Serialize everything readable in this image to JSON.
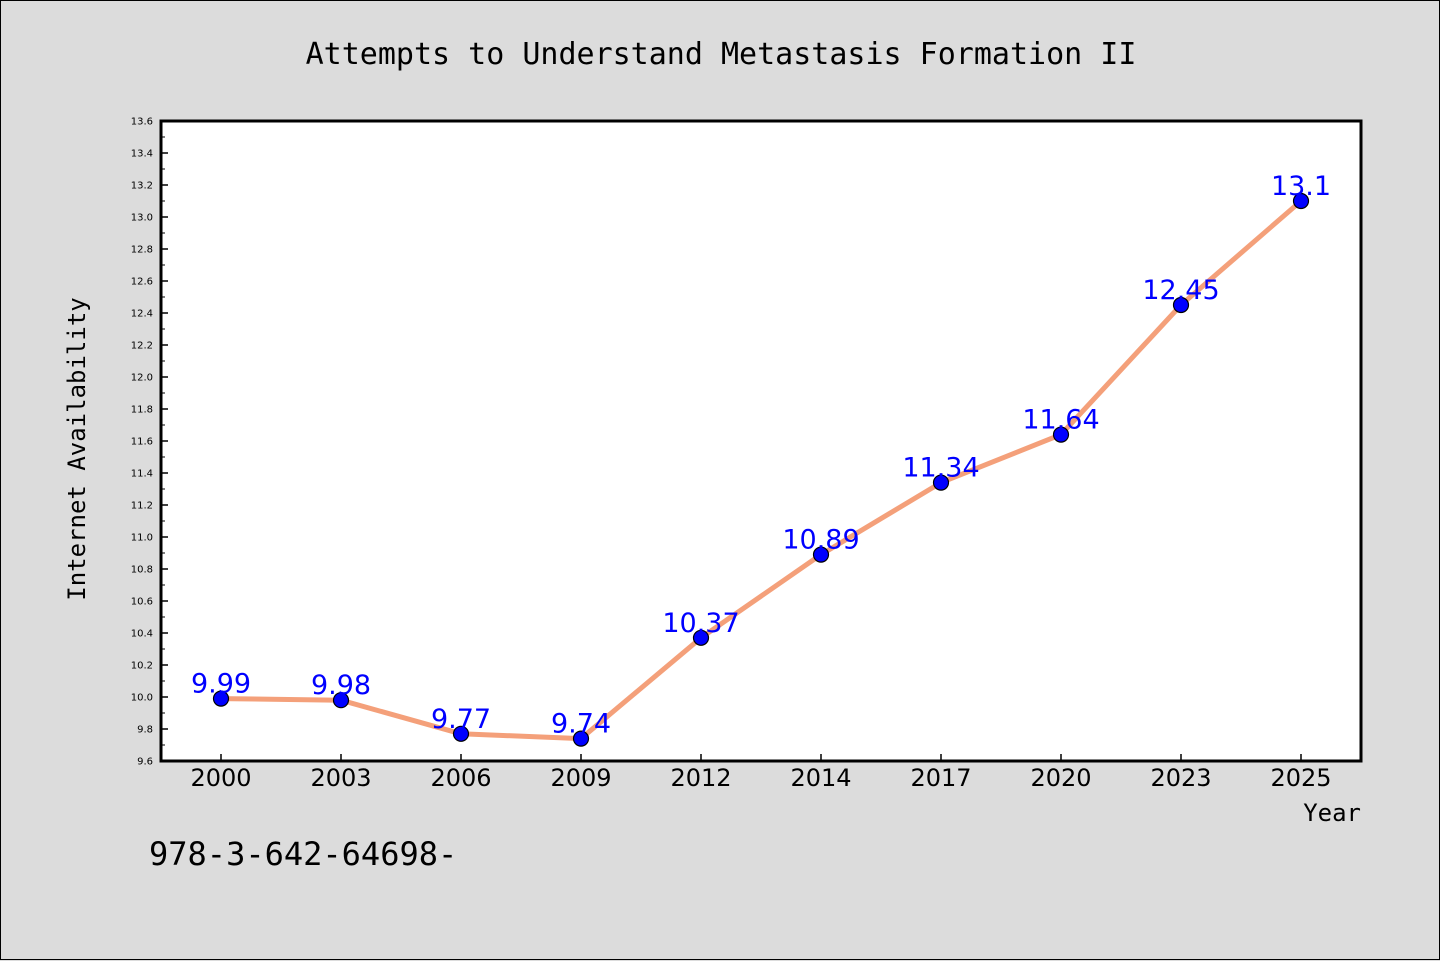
{
  "chart_data": {
    "type": "line",
    "title": "Attempts to Understand Metastasis Formation II",
    "xlabel": "Year",
    "ylabel": "Internet Availability",
    "categories": [
      "2000",
      "2003",
      "2006",
      "2009",
      "2012",
      "2014",
      "2017",
      "2020",
      "2023",
      "2025"
    ],
    "series": [
      {
        "values": [
          9.99,
          9.98,
          9.77,
          9.74,
          10.37,
          10.89,
          11.34,
          11.64,
          12.45,
          13.1
        ],
        "data_labels": [
          "9.99",
          "9.98",
          "9.77",
          "9.74",
          "10.37",
          "10.89",
          "11.34",
          "11.64",
          "12.45",
          "13.1"
        ]
      }
    ],
    "ylim": [
      9.6,
      13.6
    ],
    "yticks": [
      "9.6",
      "9.8",
      "10.0",
      "10.2",
      "10.4",
      "10.6",
      "10.8",
      "11.0",
      "11.2",
      "11.4",
      "11.6",
      "11.8",
      "12.0",
      "12.2",
      "12.4",
      "12.6",
      "12.8",
      "13.0",
      "13.2",
      "13.4",
      "13.6"
    ],
    "grid": false,
    "legend": "none",
    "colors": {
      "line": "#f4a07a",
      "marker": "#0000ff",
      "data_label": "#0000ff",
      "background": "#dcdcdc",
      "plot_background": "#ffffff"
    }
  },
  "footer_text": "978-3-642-64698-"
}
